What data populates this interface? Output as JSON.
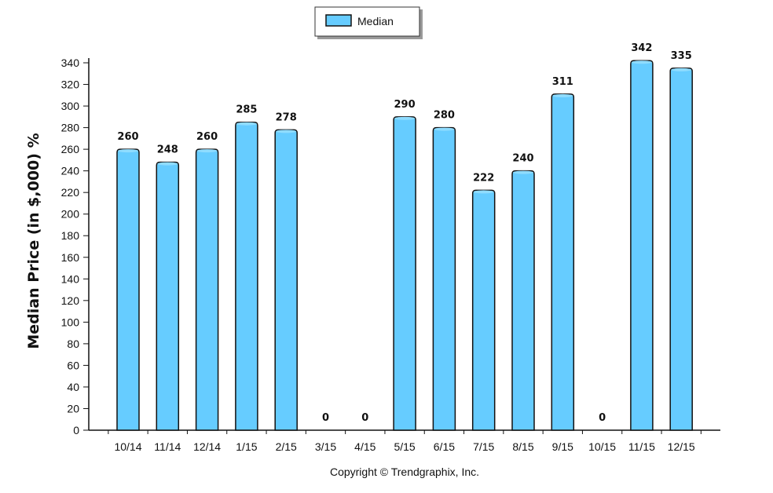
{
  "chart_data": {
    "type": "bar",
    "categories": [
      "10/14",
      "11/14",
      "12/14",
      "1/15",
      "2/15",
      "3/15",
      "4/15",
      "5/15",
      "6/15",
      "7/15",
      "8/15",
      "9/15",
      "10/15",
      "11/15",
      "12/15"
    ],
    "series": [
      {
        "name": "Median",
        "values": [
          260,
          248,
          260,
          285,
          278,
          0,
          0,
          290,
          280,
          222,
          240,
          311,
          0,
          342,
          335
        ]
      }
    ],
    "ylabel": "Median Price (in $,000) %",
    "xlabel": "",
    "ylim": [
      0,
      340
    ],
    "yticks": [
      0,
      20,
      40,
      60,
      80,
      100,
      120,
      140,
      160,
      180,
      200,
      220,
      240,
      260,
      280,
      300,
      320,
      340
    ],
    "legend_position": "top-center",
    "grid": false,
    "bar_color": "#66ccff",
    "bar_edge_color": "#111111"
  },
  "footer": {
    "copyright": "Copyright © Trendgraphix, Inc."
  }
}
